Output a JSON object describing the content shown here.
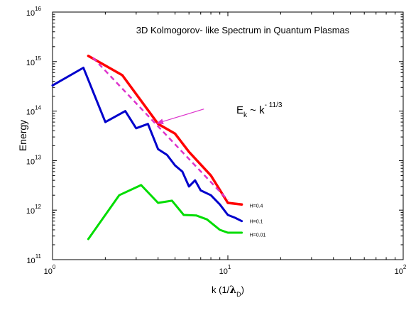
{
  "chart_data": {
    "type": "line",
    "title": "3D Kolmogorov- like Spectrum in Quantum Plasmas",
    "xlabel": {
      "text": "k (1/",
      "symbol": "λ",
      "subscript": "D",
      "close": ")"
    },
    "ylabel": "Energy",
    "x_scale": "log",
    "y_scale": "log",
    "xlim": [
      1,
      100
    ],
    "ylim": [
      100000000000.0,
      1e+16
    ],
    "x_ticks": [
      {
        "value": 1,
        "base": "10",
        "exp": "0"
      },
      {
        "value": 10,
        "base": "10",
        "exp": "1"
      },
      {
        "value": 100,
        "base": "10",
        "exp": "2"
      }
    ],
    "y_ticks": [
      {
        "value": 100000000000.0,
        "base": "10",
        "exp": "11"
      },
      {
        "value": 1000000000000.0,
        "base": "10",
        "exp": "12"
      },
      {
        "value": 10000000000000.0,
        "base": "10",
        "exp": "13"
      },
      {
        "value": 100000000000000.0,
        "base": "10",
        "exp": "14"
      },
      {
        "value": 1000000000000000.0,
        "base": "10",
        "exp": "15"
      },
      {
        "value": 1e+16,
        "base": "10",
        "exp": "16"
      }
    ],
    "grid": false,
    "series": [
      {
        "name": "H=0.4",
        "color": "#ff0000",
        "points": [
          [
            1.6,
            1300000000000000.0
          ],
          [
            2.5,
            530000000000000.0
          ],
          [
            4,
            55000000000000.0
          ],
          [
            5,
            35000000000000.0
          ],
          [
            6,
            15000000000000.0
          ],
          [
            8,
            5000000000000.0
          ],
          [
            10,
            1400000000000.0
          ],
          [
            12,
            1300000000000.0
          ]
        ]
      },
      {
        "name": "H=0.1",
        "color": "#0000cc",
        "points": [
          [
            1,
            330000000000000.0
          ],
          [
            1.5,
            750000000000000.0
          ],
          [
            2,
            60000000000000.0
          ],
          [
            2.6,
            100000000000000.0
          ],
          [
            3,
            45000000000000.0
          ],
          [
            3.5,
            55000000000000.0
          ],
          [
            4,
            17000000000000.0
          ],
          [
            4.5,
            13000000000000.0
          ],
          [
            5,
            8000000000000.0
          ],
          [
            5.5,
            6000000000000.0
          ],
          [
            6,
            3000000000000.0
          ],
          [
            6.5,
            4000000000000.0
          ],
          [
            7,
            2500000000000.0
          ],
          [
            8,
            2000000000000.0
          ],
          [
            9,
            1300000000000.0
          ],
          [
            10,
            800000000000.0
          ],
          [
            11,
            700000000000.0
          ],
          [
            12,
            600000000000.0
          ]
        ]
      },
      {
        "name": "H=0.01",
        "color": "#00dd00",
        "points": [
          [
            1.6,
            260000000000.0
          ],
          [
            2.4,
            2000000000000.0
          ],
          [
            3.2,
            3200000000000.0
          ],
          [
            4,
            1400000000000.0
          ],
          [
            4.8,
            1550000000000.0
          ],
          [
            5.6,
            800000000000.0
          ],
          [
            6.6,
            780000000000.0
          ],
          [
            7.6,
            650000000000.0
          ],
          [
            9,
            400000000000.0
          ],
          [
            10,
            350000000000.0
          ],
          [
            12,
            350000000000.0
          ]
        ]
      }
    ],
    "fit_line": {
      "style": "dashed",
      "color": "#dd33cc",
      "points": [
        [
          1.7,
          1200000000000000.0
        ],
        [
          10,
          1600000000000.0
        ]
      ]
    },
    "annotation": {
      "base": "E",
      "subscript": "k",
      "middle": " ~ k",
      "superscript": "- 11/3",
      "arrow_color": "#dd33cc",
      "arrow_from": [
        7.3,
        110000000000000.0
      ],
      "arrow_to": [
        3.9,
        56000000000000.0
      ]
    },
    "series_labels": [
      {
        "text": "H=0.4",
        "at": [
          13.3,
          1250000000000.0
        ]
      },
      {
        "text": "H=0.1",
        "at": [
          13.3,
          600000000000.0
        ]
      },
      {
        "text": "H=0.01",
        "at": [
          13.3,
          320000000000.0
        ]
      }
    ]
  }
}
